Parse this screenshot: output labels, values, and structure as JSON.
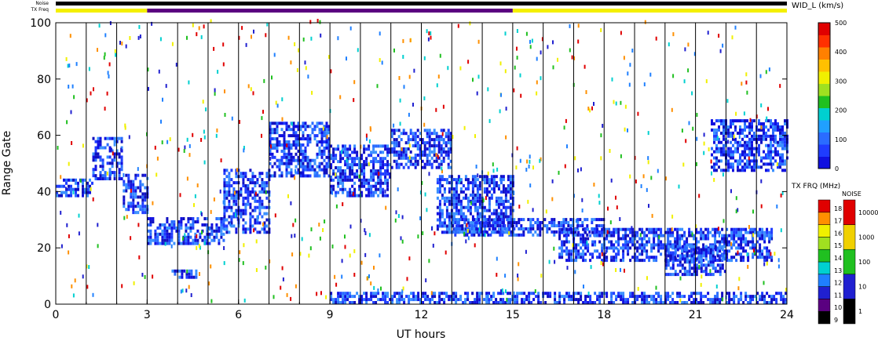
{
  "header": {
    "noise_label": "Noise",
    "txfreq_label": "TX Freq",
    "wid_title": "WID_L (km/s)"
  },
  "chart_data": {
    "type": "heatmap",
    "title": "",
    "xlabel": "UT hours",
    "ylabel": "Range Gate",
    "xlim": [
      0,
      24
    ],
    "ylim": [
      0,
      100
    ],
    "xticks": [
      "0",
      "3",
      "6",
      "9",
      "12",
      "15",
      "18",
      "21",
      "24"
    ],
    "yticks": [
      "0",
      "20",
      "40",
      "60",
      "80",
      "100"
    ],
    "vertical_lines_every_hours": 1,
    "txfreq_bar": [
      {
        "start": 0,
        "end": 3,
        "color": "#f4f000"
      },
      {
        "start": 3,
        "end": 15,
        "color": "#5a0080"
      },
      {
        "start": 15,
        "end": 24,
        "color": "#f4f000"
      }
    ],
    "noise_bar_color": "#000000",
    "bands": [
      {
        "start": 0.0,
        "end": 1.2,
        "low": 38,
        "high": 44
      },
      {
        "start": 1.2,
        "end": 2.2,
        "low": 44,
        "high": 59
      },
      {
        "start": 2.2,
        "end": 3.0,
        "low": 32,
        "high": 46
      },
      {
        "start": 3.0,
        "end": 5.5,
        "low": 21,
        "high": 30
      },
      {
        "start": 5.5,
        "end": 7.0,
        "low": 25,
        "high": 48
      },
      {
        "start": 7.0,
        "end": 9.0,
        "low": 45,
        "high": 64
      },
      {
        "start": 9.0,
        "end": 11.0,
        "low": 38,
        "high": 56
      },
      {
        "start": 11.0,
        "end": 13.0,
        "low": 48,
        "high": 62
      },
      {
        "start": 12.5,
        "end": 15.0,
        "low": 25,
        "high": 45
      },
      {
        "start": 13.0,
        "end": 18.0,
        "low": 24,
        "high": 30
      },
      {
        "start": 16.5,
        "end": 23.5,
        "low": 15,
        "high": 27
      },
      {
        "start": 20.0,
        "end": 22.0,
        "low": 10,
        "high": 20
      },
      {
        "start": 21.5,
        "end": 24.0,
        "low": 47,
        "high": 65
      },
      {
        "start": 9.0,
        "end": 24.0,
        "low": 0,
        "high": 4
      },
      {
        "start": 3.8,
        "end": 4.6,
        "low": 9,
        "high": 12
      }
    ],
    "wid_colorbar": {
      "label": "WID_L (km/s)",
      "ticks": [
        "0",
        "100",
        "200",
        "300",
        "400",
        "500"
      ],
      "range": [
        0,
        500
      ]
    },
    "txfreq_colorbar": {
      "label": "TX FRQ (MHz)",
      "ticks": [
        "9",
        "10",
        "11",
        "12",
        "13",
        "14",
        "15",
        "16",
        "17",
        "18"
      ],
      "colors": [
        "#000000",
        "#5a0080",
        "#2020d0",
        "#1f80ff",
        "#00d0d0",
        "#20c020",
        "#a0e020",
        "#f0f000",
        "#ff9000",
        "#e00000"
      ]
    },
    "noise_colorbar": {
      "label": "NOISE",
      "ticks": [
        "1",
        "10",
        "100",
        "1000",
        "10000"
      ],
      "colors": [
        "#000000",
        "#2020d0",
        "#20c020",
        "#f0d000",
        "#e00000"
      ]
    }
  }
}
